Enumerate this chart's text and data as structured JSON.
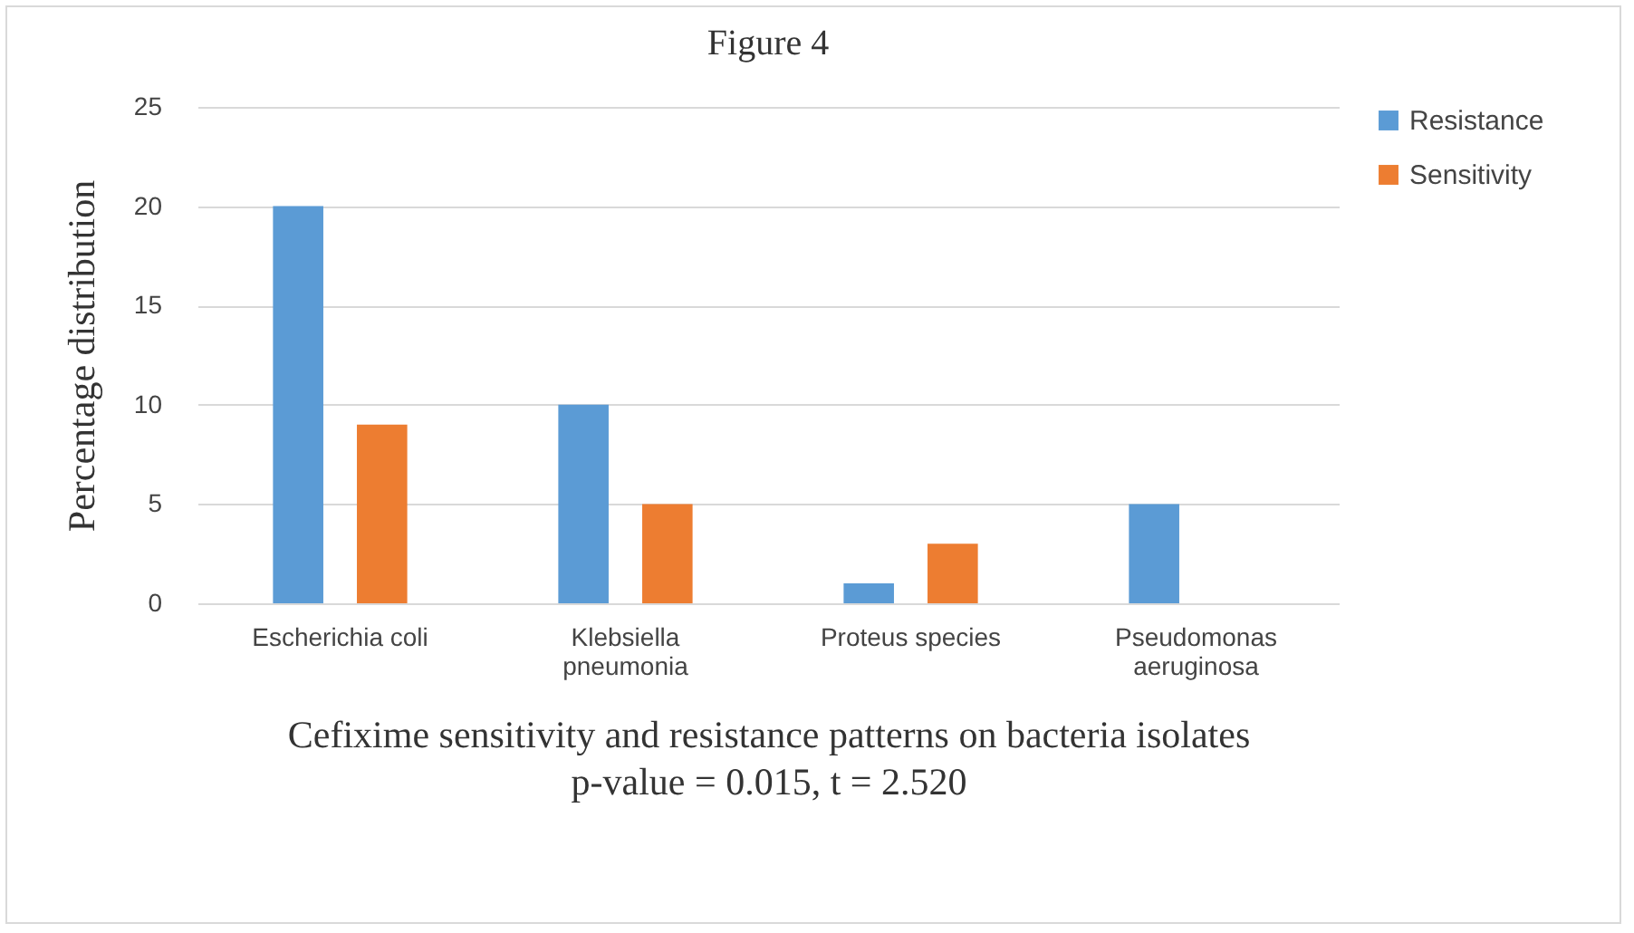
{
  "chart_data": {
    "type": "bar",
    "title": "Figure 4",
    "xlabel": "Cefixime sensitivity and resistance patterns on bacteria isolates",
    "ylabel": "Percentage distribution",
    "annotations": [
      "p-value = 0.015, t = 2.520"
    ],
    "categories": [
      "Escherichia coli",
      "Klebsiella\npneumonia",
      "Proteus species",
      "Pseudomonas\naeruginosa"
    ],
    "series": [
      {
        "name": "Resistance",
        "color": "#5b9bd5",
        "values": [
          20,
          10,
          1,
          5
        ]
      },
      {
        "name": "Sensitivity",
        "color": "#ed7d31",
        "values": [
          9,
          5,
          3,
          0
        ]
      }
    ],
    "ylim": [
      0,
      25
    ],
    "yticks": [
      0,
      5,
      10,
      15,
      20,
      25
    ],
    "grid": "y",
    "legend": "right"
  }
}
